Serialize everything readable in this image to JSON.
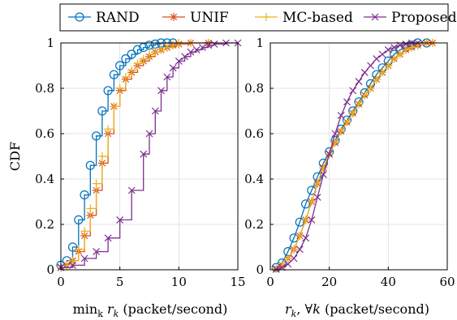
{
  "legend": {
    "entries": [
      {
        "name": "RAND",
        "color": "#0072BD",
        "marker": "circle"
      },
      {
        "name": "UNIF",
        "color": "#D95319",
        "marker": "asterisk"
      },
      {
        "name": "MC-based",
        "color": "#EDB120",
        "marker": "plus"
      },
      {
        "name": "Proposed",
        "color": "#7E2F8E",
        "marker": "x"
      }
    ]
  },
  "chart_data": [
    {
      "type": "line",
      "xlabel": "min_k r_k (packet/second)",
      "ylabel": "CDF",
      "xlim": [
        0,
        15
      ],
      "ylim": [
        0,
        1
      ],
      "xticks": [
        "0",
        "5",
        "10",
        "15"
      ],
      "yticks": [
        "0",
        "0.2",
        "0.4",
        "0.6",
        "0.8",
        "1"
      ],
      "grid": true,
      "series": [
        {
          "name": "RAND",
          "x": [
            0,
            0.5,
            1,
            1.5,
            2,
            2.5,
            3,
            3.5,
            4,
            4.5,
            5,
            5.5,
            6,
            6.5,
            7,
            7.5,
            8,
            8.5,
            9,
            9.5
          ],
          "y": [
            0.02,
            0.04,
            0.1,
            0.22,
            0.33,
            0.46,
            0.59,
            0.7,
            0.79,
            0.86,
            0.9,
            0.93,
            0.95,
            0.97,
            0.98,
            0.99,
            0.995,
            1,
            1,
            1
          ]
        },
        {
          "name": "UNIF",
          "x": [
            0,
            0.5,
            1,
            1.5,
            2,
            2.5,
            3,
            3.5,
            4,
            4.5,
            5,
            5.5,
            6,
            6.5,
            7,
            7.5,
            8,
            8.5,
            9,
            9.5,
            10,
            11,
            12.5
          ],
          "y": [
            0.01,
            0.02,
            0.04,
            0.08,
            0.15,
            0.24,
            0.35,
            0.47,
            0.6,
            0.72,
            0.79,
            0.84,
            0.87,
            0.9,
            0.92,
            0.94,
            0.96,
            0.97,
            0.98,
            0.99,
            0.995,
            1,
            1
          ]
        },
        {
          "name": "MC-based",
          "x": [
            0,
            0.5,
            1,
            1.5,
            2,
            2.5,
            3,
            3.5,
            4,
            4.5,
            5,
            5.5,
            6,
            6.5,
            7,
            7.5,
            8,
            8.5,
            9,
            9.5,
            10,
            11,
            12.5
          ],
          "y": [
            0.01,
            0.02,
            0.04,
            0.09,
            0.17,
            0.27,
            0.38,
            0.5,
            0.62,
            0.72,
            0.8,
            0.85,
            0.88,
            0.91,
            0.93,
            0.95,
            0.96,
            0.97,
            0.98,
            0.99,
            1,
            1,
            1
          ]
        },
        {
          "name": "Proposed",
          "x": [
            0,
            1,
            2,
            3,
            4,
            5,
            6,
            7,
            7.5,
            8,
            8.5,
            9,
            9.5,
            10,
            10.5,
            11,
            11.5,
            12,
            12.5,
            13,
            14,
            15
          ],
          "y": [
            0.01,
            0.02,
            0.05,
            0.08,
            0.14,
            0.22,
            0.35,
            0.51,
            0.6,
            0.7,
            0.79,
            0.85,
            0.89,
            0.92,
            0.94,
            0.96,
            0.97,
            0.98,
            0.99,
            0.995,
            1,
            1
          ]
        }
      ]
    },
    {
      "type": "line",
      "xlabel": "r_k, ∀k (packet/second)",
      "ylabel": "",
      "xlim": [
        0,
        60
      ],
      "ylim": [
        0,
        1
      ],
      "xticks": [
        "0",
        "20",
        "40",
        "60"
      ],
      "yticks": [
        "0",
        "0.2",
        "0.4",
        "0.6",
        "0.8",
        "1"
      ],
      "grid": true,
      "series": [
        {
          "name": "RAND",
          "x": [
            2,
            4,
            6,
            8,
            10,
            12,
            14,
            16,
            18,
            20,
            22,
            24,
            26,
            28,
            30,
            32,
            34,
            36,
            38,
            40,
            42,
            44,
            46,
            48,
            50,
            53
          ],
          "y": [
            0.01,
            0.03,
            0.08,
            0.14,
            0.21,
            0.29,
            0.35,
            0.41,
            0.47,
            0.52,
            0.57,
            0.62,
            0.66,
            0.7,
            0.74,
            0.78,
            0.82,
            0.86,
            0.89,
            0.92,
            0.95,
            0.97,
            0.98,
            0.99,
            1,
            1
          ]
        },
        {
          "name": "UNIF",
          "x": [
            2,
            4,
            6,
            8,
            10,
            12,
            14,
            16,
            18,
            20,
            22,
            24,
            26,
            28,
            30,
            32,
            34,
            36,
            38,
            40,
            42,
            44,
            46,
            48,
            50,
            53,
            55
          ],
          "y": [
            0.005,
            0.02,
            0.05,
            0.09,
            0.15,
            0.22,
            0.3,
            0.38,
            0.45,
            0.51,
            0.56,
            0.61,
            0.65,
            0.69,
            0.73,
            0.77,
            0.8,
            0.84,
            0.87,
            0.9,
            0.93,
            0.95,
            0.97,
            0.98,
            0.99,
            1,
            1
          ]
        },
        {
          "name": "MC-based",
          "x": [
            2,
            4,
            6,
            8,
            10,
            12,
            14,
            16,
            18,
            20,
            22,
            24,
            26,
            28,
            30,
            32,
            34,
            36,
            38,
            40,
            42,
            44,
            46,
            48,
            50,
            53,
            55
          ],
          "y": [
            0.005,
            0.02,
            0.05,
            0.09,
            0.15,
            0.22,
            0.3,
            0.38,
            0.45,
            0.51,
            0.56,
            0.61,
            0.65,
            0.69,
            0.73,
            0.77,
            0.8,
            0.84,
            0.87,
            0.9,
            0.93,
            0.95,
            0.97,
            0.98,
            0.99,
            1,
            1
          ]
        },
        {
          "name": "Proposed",
          "x": [
            2,
            4,
            6,
            8,
            10,
            12,
            14,
            16,
            18,
            20,
            22,
            24,
            26,
            28,
            30,
            32,
            34,
            36,
            38,
            40,
            42,
            44,
            46,
            48,
            50
          ],
          "y": [
            0.002,
            0.01,
            0.025,
            0.05,
            0.09,
            0.14,
            0.22,
            0.32,
            0.42,
            0.51,
            0.6,
            0.68,
            0.74,
            0.79,
            0.83,
            0.87,
            0.9,
            0.93,
            0.95,
            0.97,
            0.98,
            0.99,
            0.995,
            1,
            1
          ]
        }
      ]
    }
  ]
}
